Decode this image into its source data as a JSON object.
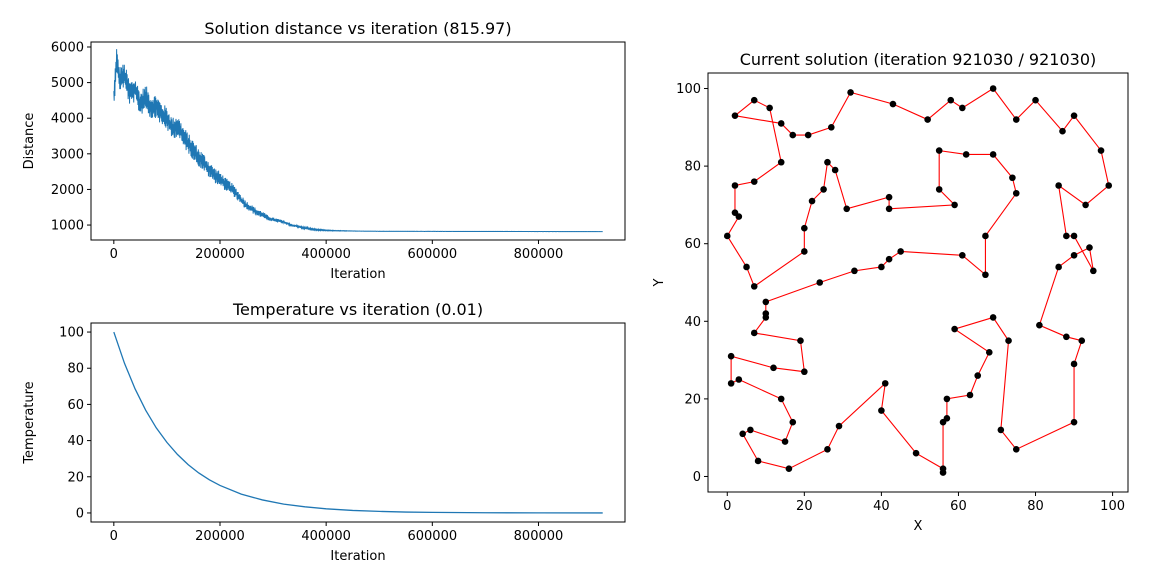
{
  "chart_data": [
    {
      "type": "line",
      "title": "Solution distance vs iteration (815.97)",
      "xlabel": "Iteration",
      "ylabel": "Distance",
      "xlim": [
        -43000,
        963000
      ],
      "ylim": [
        580,
        6140
      ],
      "xticks": [
        0,
        200000,
        400000,
        600000,
        800000
      ],
      "yticks": [
        1000,
        2000,
        3000,
        4000,
        5000,
        6000
      ],
      "color": "#1f77b4",
      "series": [
        {
          "points": [
            [
              0,
              4500
            ],
            [
              5000,
              5700
            ],
            [
              10000,
              5100
            ],
            [
              20000,
              5200
            ],
            [
              30000,
              4700
            ],
            [
              40000,
              4800
            ],
            [
              50000,
              4400
            ],
            [
              60000,
              4600
            ],
            [
              70000,
              4300
            ],
            [
              80000,
              4350
            ],
            [
              90000,
              4100
            ],
            [
              100000,
              4000
            ],
            [
              110000,
              3700
            ],
            [
              120000,
              3800
            ],
            [
              130000,
              3500
            ],
            [
              140000,
              3300
            ],
            [
              150000,
              3100
            ],
            [
              160000,
              2900
            ],
            [
              170000,
              2750
            ],
            [
              180000,
              2550
            ],
            [
              190000,
              2400
            ],
            [
              200000,
              2300
            ],
            [
              210000,
              2150
            ],
            [
              220000,
              2050
            ],
            [
              230000,
              1900
            ],
            [
              240000,
              1700
            ],
            [
              250000,
              1550
            ],
            [
              260000,
              1450
            ],
            [
              270000,
              1350
            ],
            [
              280000,
              1300
            ],
            [
              290000,
              1200
            ],
            [
              300000,
              1150
            ],
            [
              310000,
              1120
            ],
            [
              320000,
              1080
            ],
            [
              330000,
              1020
            ],
            [
              340000,
              980
            ],
            [
              350000,
              950
            ],
            [
              360000,
              920
            ],
            [
              370000,
              890
            ],
            [
              380000,
              870
            ],
            [
              390000,
              860
            ],
            [
              400000,
              850
            ],
            [
              420000,
              840
            ],
            [
              440000,
              835
            ],
            [
              460000,
              830
            ],
            [
              480000,
              828
            ],
            [
              500000,
              825
            ],
            [
              600000,
              822
            ],
            [
              700000,
              820
            ],
            [
              800000,
              818
            ],
            [
              921030,
              816
            ]
          ],
          "spread": [
            [
              0,
              700
            ],
            [
              50000,
              700
            ],
            [
              100000,
              650
            ],
            [
              150000,
              550
            ],
            [
              200000,
              400
            ],
            [
              250000,
              250
            ],
            [
              300000,
              120
            ],
            [
              350000,
              60
            ],
            [
              400000,
              20
            ],
            [
              460000,
              5
            ],
            [
              921030,
              2
            ]
          ]
        }
      ]
    },
    {
      "type": "line",
      "title": "Temperature vs iteration (0.01)",
      "xlabel": "Iteration",
      "ylabel": "Temperature",
      "xlim": [
        -43000,
        963000
      ],
      "ylim": [
        -5,
        105
      ],
      "xticks": [
        0,
        200000,
        400000,
        600000,
        800000
      ],
      "yticks": [
        0,
        20,
        40,
        60,
        80,
        100
      ],
      "color": "#1f77b4",
      "series": [
        {
          "points": [
            [
              0,
              100
            ],
            [
              20000,
              82.8
            ],
            [
              40000,
              68.6
            ],
            [
              60000,
              56.8
            ],
            [
              80000,
              47
            ],
            [
              100000,
              39
            ],
            [
              120000,
              32.3
            ],
            [
              140000,
              26.7
            ],
            [
              160000,
              22.1
            ],
            [
              180000,
              18.3
            ],
            [
              200000,
              15.2
            ],
            [
              240000,
              10.4
            ],
            [
              280000,
              7.2
            ],
            [
              320000,
              4.9
            ],
            [
              360000,
              3.4
            ],
            [
              400000,
              2.3
            ],
            [
              450000,
              1.4
            ],
            [
              500000,
              0.86
            ],
            [
              550000,
              0.5
            ],
            [
              600000,
              0.32
            ],
            [
              700000,
              0.12
            ],
            [
              800000,
              0.05
            ],
            [
              921030,
              0.01
            ]
          ]
        }
      ]
    },
    {
      "type": "scatter",
      "title": "Current solution (iteration 921030 / 921030)",
      "xlabel": "X",
      "ylabel": "Y",
      "xlim": [
        -5,
        104
      ],
      "ylim": [
        -4,
        104
      ],
      "xticks": [
        0,
        20,
        40,
        60,
        80,
        100
      ],
      "yticks": [
        0,
        20,
        40,
        60,
        80,
        100
      ],
      "line_color": "#ff0000",
      "point_color": "#000000",
      "route": [
        [
          2,
          93
        ],
        [
          7,
          97
        ],
        [
          11,
          95
        ],
        [
          14,
          81
        ],
        [
          7,
          76
        ],
        [
          2,
          75
        ],
        [
          2,
          68
        ],
        [
          3,
          67
        ],
        [
          0,
          62
        ],
        [
          5,
          54
        ],
        [
          7,
          49
        ],
        [
          20,
          58
        ],
        [
          20,
          64
        ],
        [
          22,
          71
        ],
        [
          25,
          74
        ],
        [
          26,
          81
        ],
        [
          28,
          79
        ],
        [
          31,
          69
        ],
        [
          42,
          72
        ],
        [
          42,
          69
        ],
        [
          59,
          70
        ],
        [
          55,
          74
        ],
        [
          55,
          84
        ],
        [
          62,
          83
        ],
        [
          69,
          83
        ],
        [
          74,
          77
        ],
        [
          75,
          73
        ],
        [
          67,
          62
        ],
        [
          67,
          52
        ],
        [
          61,
          57
        ],
        [
          45,
          58
        ],
        [
          42,
          56
        ],
        [
          40,
          54
        ],
        [
          33,
          53
        ],
        [
          24,
          50
        ],
        [
          10,
          45
        ],
        [
          10,
          42
        ],
        [
          10,
          41
        ],
        [
          7,
          37
        ],
        [
          19,
          35
        ],
        [
          20,
          27
        ],
        [
          12,
          28
        ],
        [
          1,
          31
        ],
        [
          1,
          24
        ],
        [
          3,
          25
        ],
        [
          14,
          20
        ],
        [
          17,
          14
        ],
        [
          15,
          9
        ],
        [
          6,
          12
        ],
        [
          4,
          11
        ],
        [
          8,
          4
        ],
        [
          16,
          2
        ],
        [
          26,
          7
        ],
        [
          29,
          13
        ],
        [
          41,
          24
        ],
        [
          40,
          17
        ],
        [
          49,
          6
        ],
        [
          56,
          2
        ],
        [
          56,
          1
        ],
        [
          56,
          14
        ],
        [
          57,
          15
        ],
        [
          57,
          20
        ],
        [
          63,
          21
        ],
        [
          65,
          26
        ],
        [
          68,
          32
        ],
        [
          59,
          38
        ],
        [
          69,
          41
        ],
        [
          73,
          35
        ],
        [
          71,
          12
        ],
        [
          75,
          7
        ],
        [
          90,
          14
        ],
        [
          90,
          29
        ],
        [
          92,
          35
        ],
        [
          88,
          36
        ],
        [
          81,
          39
        ],
        [
          86,
          54
        ],
        [
          90,
          57
        ],
        [
          94,
          59
        ],
        [
          95,
          53
        ],
        [
          90,
          62
        ],
        [
          88,
          62
        ],
        [
          86,
          75
        ],
        [
          93,
          70
        ],
        [
          99,
          75
        ],
        [
          97,
          84
        ],
        [
          90,
          93
        ],
        [
          87,
          89
        ],
        [
          80,
          97
        ],
        [
          75,
          92
        ],
        [
          69,
          100
        ],
        [
          61,
          95
        ],
        [
          58,
          97
        ],
        [
          52,
          92
        ],
        [
          43,
          96
        ],
        [
          32,
          99
        ],
        [
          27,
          90
        ],
        [
          21,
          88
        ],
        [
          17,
          88
        ],
        [
          14,
          91
        ],
        [
          2,
          93
        ]
      ]
    }
  ]
}
